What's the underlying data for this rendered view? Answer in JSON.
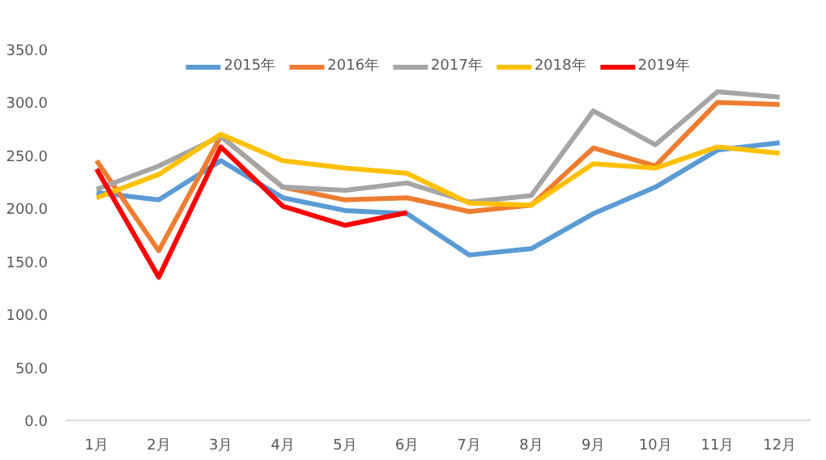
{
  "chart_data": {
    "type": "line",
    "categories": [
      "1月",
      "2月",
      "3月",
      "4月",
      "5月",
      "6月",
      "7月",
      "8月",
      "9月",
      "10月",
      "11月",
      "12月"
    ],
    "ylim": [
      0,
      350
    ],
    "yticks": [
      {
        "value": 0,
        "label": "0.0"
      },
      {
        "value": 50,
        "label": "50.0"
      },
      {
        "value": 100,
        "label": "100.0"
      },
      {
        "value": 150,
        "label": "150.0"
      },
      {
        "value": 200,
        "label": "200.0"
      },
      {
        "value": 250,
        "label": "250.0"
      },
      {
        "value": 300,
        "label": "300.0"
      },
      {
        "value": 350,
        "label": "350.0"
      }
    ],
    "grid": false,
    "legend": "top",
    "marker": "none",
    "line_style": "solid",
    "series": [
      {
        "name": "2015年",
        "color": "#5b9bd5",
        "values": [
          215,
          208,
          245,
          210,
          198,
          195,
          156,
          162,
          195,
          220,
          255,
          262
        ]
      },
      {
        "name": "2016年",
        "color": "#ed7d31",
        "values": [
          245,
          160,
          268,
          220,
          208,
          210,
          197,
          203,
          257,
          240,
          300,
          298
        ]
      },
      {
        "name": "2017年",
        "color": "#a5a5a5",
        "values": [
          218,
          240,
          268,
          220,
          217,
          224,
          206,
          212,
          292,
          260,
          310,
          305
        ]
      },
      {
        "name": "2018年",
        "color": "#ffc000",
        "values": [
          210,
          232,
          270,
          245,
          238,
          233,
          205,
          203,
          242,
          238,
          258,
          252
        ]
      },
      {
        "name": "2019年",
        "color": "#ff0000",
        "values": [
          237,
          135,
          258,
          202,
          184,
          196,
          null,
          null,
          null,
          null,
          null,
          null
        ]
      }
    ]
  }
}
